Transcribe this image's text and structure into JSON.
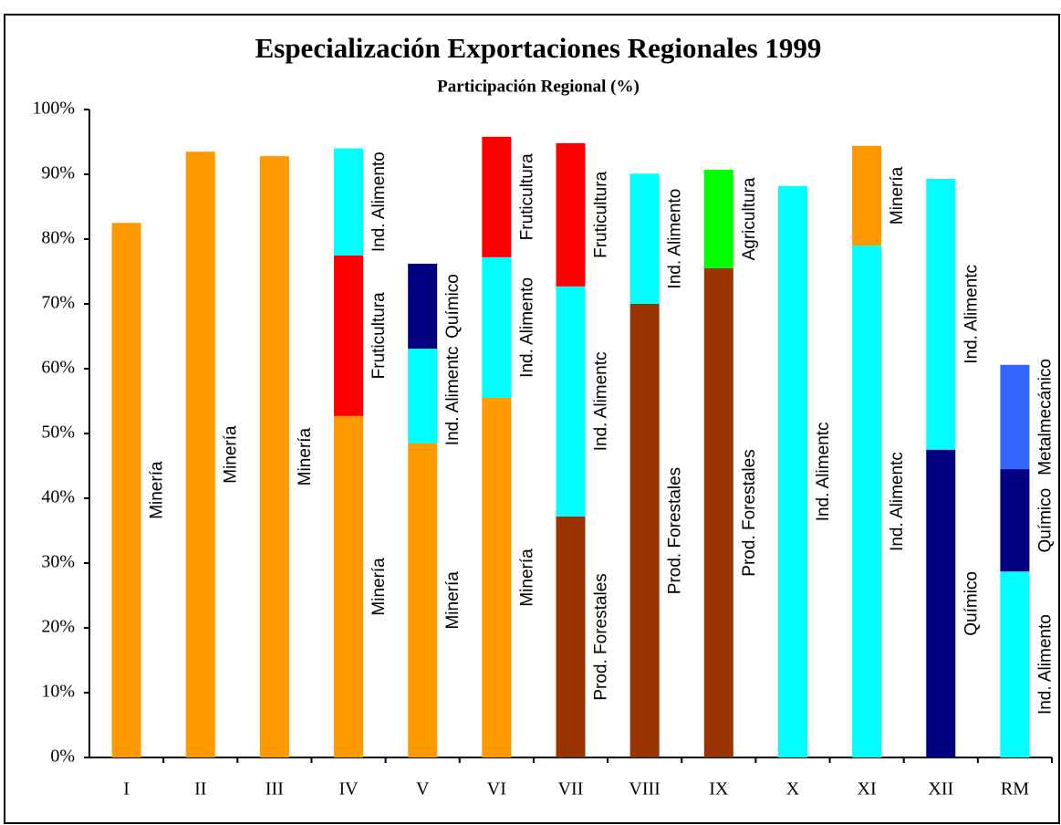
{
  "chart_data": {
    "type": "stacked-bar",
    "title": "Especialización Exportaciones Regionales 1999",
    "subtitle": "Participación Regional (%)",
    "categories": [
      "I",
      "II",
      "III",
      "IV",
      "V",
      "VI",
      "VII",
      "VIII",
      "IX",
      "X",
      "XI",
      "XII",
      "RM"
    ],
    "stacks": [
      [
        {
          "label": "Minería",
          "value": 82.5,
          "color": "#ff9900"
        }
      ],
      [
        {
          "label": "Minería",
          "value": 93.5,
          "color": "#ff9900"
        }
      ],
      [
        {
          "label": "Minería",
          "value": 92.8,
          "color": "#ff9900"
        }
      ],
      [
        {
          "label": "Minería",
          "value": 52.7,
          "color": "#ff9900"
        },
        {
          "label": "Fruticultura",
          "value": 24.8,
          "color": "#ff0000"
        },
        {
          "label": "Ind. Alimento",
          "value": 16.5,
          "color": "#00ffff"
        }
      ],
      [
        {
          "label": "Minería",
          "value": 48.5,
          "color": "#ff9900"
        },
        {
          "label": "Ind. Alimentc",
          "value": 14.6,
          "color": "#00ffff"
        },
        {
          "label": "Químico",
          "value": 13.1,
          "color": "#000080"
        }
      ],
      [
        {
          "label": "Minería",
          "value": 55.5,
          "color": "#ff9900"
        },
        {
          "label": "Ind. Alimento",
          "value": 21.7,
          "color": "#00ffff"
        },
        {
          "label": "Fruticultura",
          "value": 18.6,
          "color": "#ff0000"
        }
      ],
      [
        {
          "label": "Prod. Forestales",
          "value": 37.2,
          "color": "#993300"
        },
        {
          "label": "Ind. Alimentc",
          "value": 35.5,
          "color": "#00ffff"
        },
        {
          "label": "Fruticultura",
          "value": 22.1,
          "color": "#ff0000"
        }
      ],
      [
        {
          "label": "Prod. Forestales",
          "value": 70,
          "color": "#993300"
        },
        {
          "label": "Ind. Alimento",
          "value": 20.1,
          "color": "#00ffff"
        }
      ],
      [
        {
          "label": "Prod. Forestales",
          "value": 75.5,
          "color": "#993300"
        },
        {
          "label": "Agricultura",
          "value": 15.2,
          "color": "#00ff00"
        }
      ],
      [
        {
          "label": "Ind. Alimentc",
          "value": 88.2,
          "color": "#00ffff"
        }
      ],
      [
        {
          "label": "Ind. Alimentc",
          "value": 79,
          "color": "#00ffff"
        },
        {
          "label": "Minería",
          "value": 15.4,
          "color": "#ff9900"
        }
      ],
      [
        {
          "label": "Químico",
          "value": 47.5,
          "color": "#000080"
        },
        {
          "label": "Ind. Alimentc",
          "value": 41.8,
          "color": "#00ffff"
        }
      ],
      [
        {
          "label": "Ind. Alimento",
          "value": 28.7,
          "color": "#00ffff"
        },
        {
          "label": "Químico",
          "value": 15.8,
          "color": "#000080"
        },
        {
          "label": "Metalmecánico",
          "value": 16.1,
          "color": "#3366ff"
        }
      ]
    ],
    "ylim": [
      0,
      100
    ],
    "yticks": [
      {
        "value": 0,
        "label": "0%"
      },
      {
        "value": 10,
        "label": "10%"
      },
      {
        "value": 20,
        "label": "20%"
      },
      {
        "value": 30,
        "label": "30%"
      },
      {
        "value": 40,
        "label": "40%"
      },
      {
        "value": 50,
        "label": "50%"
      },
      {
        "value": 60,
        "label": "60%"
      },
      {
        "value": 70,
        "label": "70%"
      },
      {
        "value": 80,
        "label": "80%"
      },
      {
        "value": 90,
        "label": "90%"
      },
      {
        "value": 100,
        "label": "100%"
      }
    ]
  }
}
